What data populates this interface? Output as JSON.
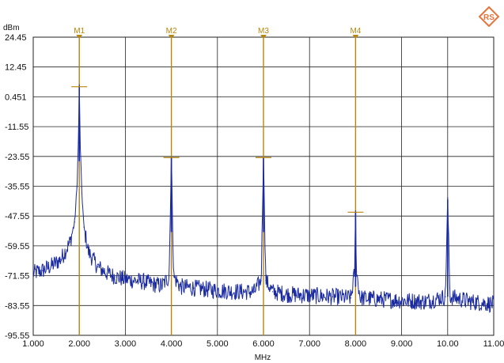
{
  "chart_data": {
    "type": "line",
    "title": "",
    "xlabel": "MHz",
    "ylabel": "dBm",
    "xlim": [
      1.0,
      11.0
    ],
    "ylim": [
      -95.55,
      24.45
    ],
    "x_ticks": [
      1,
      2,
      3,
      4,
      5,
      6,
      7,
      8,
      9,
      10,
      11
    ],
    "x_tick_labels": [
      "1.000",
      "2.000",
      "3.000",
      "4.000",
      "5.000",
      "6.000",
      "7.000",
      "8.000",
      "9.000",
      "10.00",
      "11.00"
    ],
    "y_ticks": [
      24.45,
      12.45,
      0.451,
      -11.55,
      -23.55,
      -35.55,
      -47.55,
      -59.55,
      -71.55,
      -83.55,
      -95.55
    ],
    "y_tick_labels": [
      "24.45",
      "12.45",
      "0.451",
      "-11.55",
      "-23.55",
      "-35.55",
      "-47.55",
      "-59.55",
      "-71.55",
      "-83.55",
      "-95.55"
    ],
    "grid": true,
    "series": [
      {
        "color": "#1a2aa0",
        "x": [
          1.0,
          1.2,
          1.4,
          1.6,
          1.8,
          1.9,
          1.95,
          1.98,
          2.0,
          2.02,
          2.05,
          2.1,
          2.2,
          2.4,
          2.6,
          2.8,
          3.0,
          3.2,
          3.4,
          3.6,
          3.8,
          3.95,
          4.0,
          4.05,
          4.2,
          4.5,
          5.0,
          5.5,
          5.8,
          5.95,
          6.0,
          6.05,
          6.2,
          6.5,
          7.0,
          7.5,
          7.9,
          7.98,
          8.0,
          8.02,
          8.1,
          8.5,
          9.0,
          9.5,
          9.95,
          10.0,
          10.05,
          10.5,
          11.0
        ],
        "y": [
          -70.5,
          -69.5,
          -67.5,
          -65.0,
          -58.0,
          -50.0,
          -36.0,
          -18.0,
          4.5,
          -18.0,
          -36.0,
          -52.0,
          -62.0,
          -68.0,
          -70.5,
          -72.0,
          -73.0,
          -73.5,
          -74.0,
          -75.0,
          -75.5,
          -72.0,
          -24.0,
          -72.0,
          -76.0,
          -76.5,
          -77.5,
          -78.0,
          -78.0,
          -73.5,
          -24.0,
          -73.5,
          -78.0,
          -79.0,
          -79.5,
          -80.0,
          -80.5,
          -70.0,
          -46.0,
          -70.0,
          -80.5,
          -81.0,
          -81.5,
          -82.0,
          -80.0,
          -41.0,
          -80.0,
          -82.0,
          -83.0
        ]
      }
    ],
    "markers": [
      {
        "label": "M1",
        "x": 2.0,
        "y": 4.5
      },
      {
        "label": "M2",
        "x": 4.0,
        "y": -24.0
      },
      {
        "label": "M3",
        "x": 6.0,
        "y": -24.0
      },
      {
        "label": "M4",
        "x": 8.0,
        "y": -46.0
      }
    ],
    "marker_color": "#b8860b"
  },
  "brand": {
    "logo_text": "RS",
    "color": "#e8743b"
  }
}
